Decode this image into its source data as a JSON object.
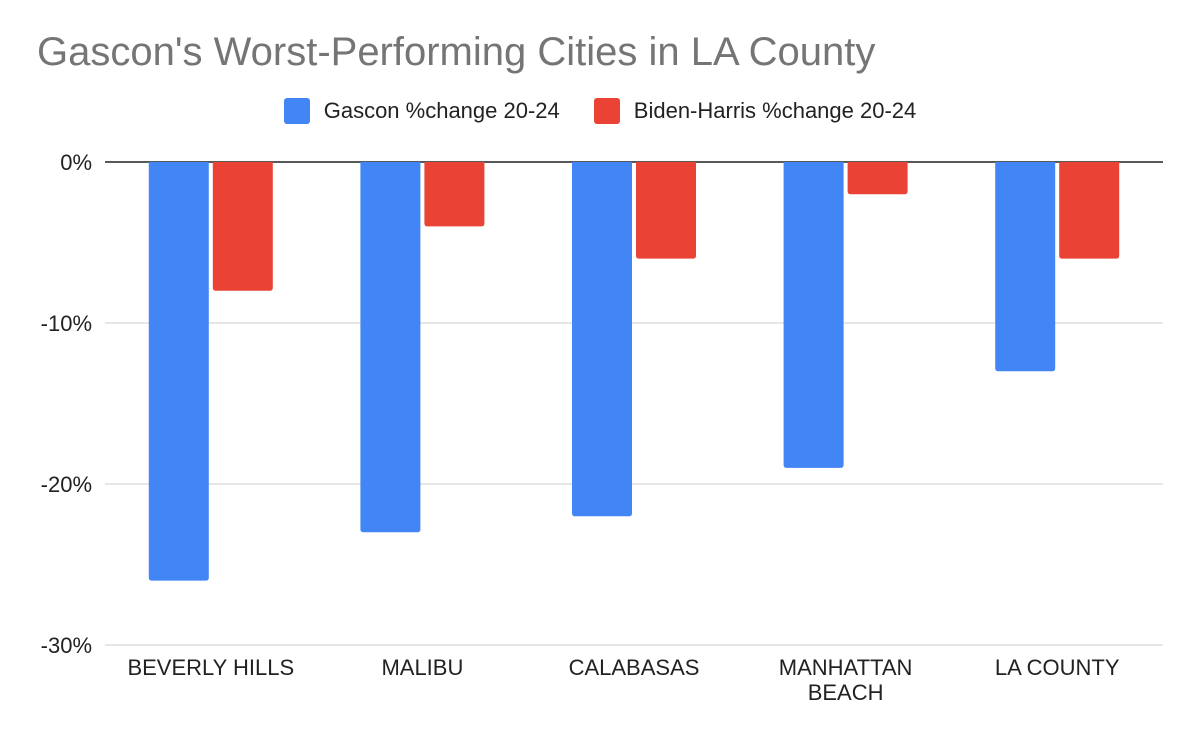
{
  "chart_data": {
    "type": "bar",
    "title": "Gascon's Worst-Performing Cities in LA County",
    "xlabel": "",
    "ylabel": "",
    "categories": [
      [
        "BEVERLY HILLS"
      ],
      [
        "MALIBU"
      ],
      [
        "CALABASAS"
      ],
      [
        "MANHATTAN",
        "BEACH"
      ],
      [
        "LA COUNTY"
      ]
    ],
    "series": [
      {
        "name": "Gascon %change 20-24",
        "color": "#4285f4",
        "values": [
          -26,
          -23,
          -22,
          -19,
          -13
        ]
      },
      {
        "name": "Biden-Harris %change 20-24",
        "color": "#ea4335",
        "values": [
          -8,
          -4,
          -6,
          -2,
          -6
        ]
      }
    ],
    "ylim": [
      -30,
      0
    ],
    "yticks": [
      0,
      -10,
      -20,
      -30
    ],
    "ytick_labels": [
      "0%",
      "-10%",
      "-20%",
      "-30%"
    ],
    "grid": true,
    "legend_position": "top-center"
  }
}
